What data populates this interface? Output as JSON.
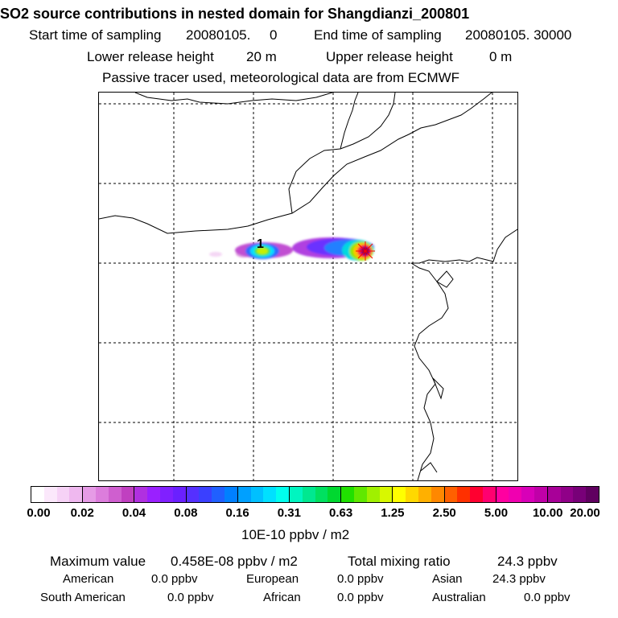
{
  "header": {
    "title": "SO2 source contributions in nested domain for Shangdianzi_200801",
    "start_label": "Start time of sampling",
    "start_value": "20080105.     0",
    "end_label": "End time of sampling",
    "end_value": "20080105. 30000",
    "lower_label": "Lower release height",
    "lower_value": "20 m",
    "upper_label": "Upper release height",
    "upper_value": "0 m",
    "tracer_note": "Passive tracer used, meteorological data are from ECMWF"
  },
  "map": {
    "source_marker_label": "1",
    "station_marker": "×"
  },
  "colorbar": {
    "labels": [
      "0.00",
      "0.02",
      "0.04",
      "0.08",
      "0.16",
      "0.31",
      "0.63",
      "1.25",
      "2.50",
      "5.00",
      "10.00",
      "20.00"
    ],
    "colors": [
      "#ffffff",
      "#fbe8fb",
      "#f6d2f6",
      "#efb8ef",
      "#e69be6",
      "#dc7ddc",
      "#cf5fcf",
      "#c040c0",
      "#b030e0",
      "#9a20ff",
      "#8020ff",
      "#6a20ff",
      "#5530ff",
      "#3a40ff",
      "#2060ff",
      "#0080ff",
      "#00a0ff",
      "#00c0ff",
      "#00e0ff",
      "#00ffee",
      "#00f5c0",
      "#00e890",
      "#00e060",
      "#00d830",
      "#20e000",
      "#60e800",
      "#a0f000",
      "#d8f800",
      "#ffff00",
      "#ffd800",
      "#ffb000",
      "#ff8800",
      "#ff6000",
      "#ff3000",
      "#ff0030",
      "#ff0070",
      "#ff00a0",
      "#f000b0",
      "#d800b8",
      "#c000a8",
      "#a80098",
      "#900088",
      "#780078",
      "#600060"
    ],
    "unit": "10E-10 ppbv / m2"
  },
  "summary": {
    "max_label": "Maximum value",
    "max_value": "0.458E-08 ppbv / m2",
    "total_label": "Total mixing ratio",
    "total_value": "24.3 ppbv",
    "regions": [
      {
        "name": "American",
        "value": "0.0 ppbv"
      },
      {
        "name": "European",
        "value": "0.0 ppbv"
      },
      {
        "name": "Asian",
        "value": "24.3 ppbv"
      },
      {
        "name": "South American",
        "value": "0.0 ppbv"
      },
      {
        "name": "African",
        "value": "0.0 ppbv"
      },
      {
        "name": "Australian",
        "value": "0.0 ppbv"
      }
    ]
  }
}
